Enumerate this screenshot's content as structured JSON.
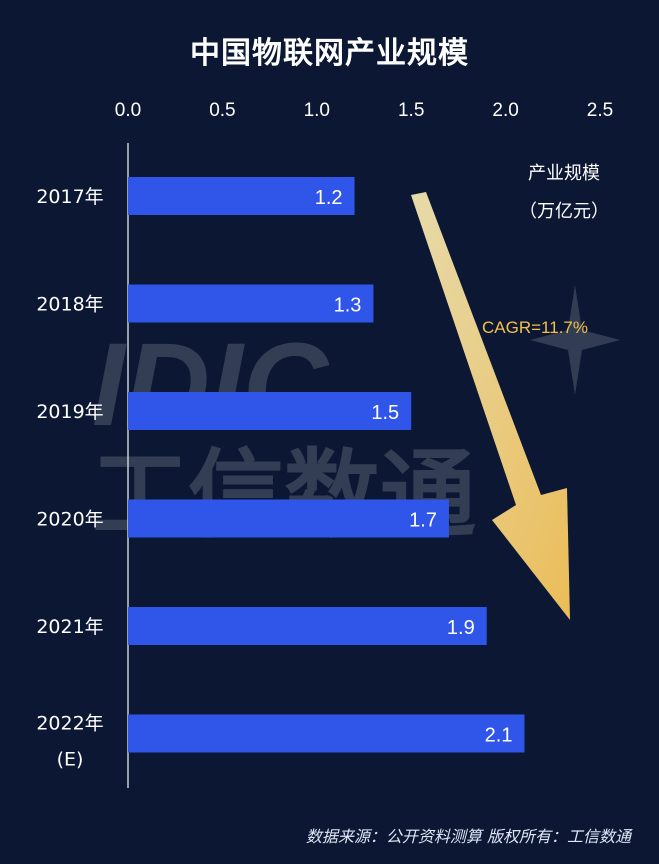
{
  "chart_data": {
    "type": "bar",
    "orientation": "horizontal",
    "title": "中国物联网产业规模",
    "categories": [
      "2017年",
      "2018年",
      "2019年",
      "2020年",
      "2021年",
      "2022年\n(E)"
    ],
    "values": [
      1.2,
      1.3,
      1.5,
      1.7,
      1.9,
      2.1
    ],
    "value_labels": [
      "1.2",
      "1.3",
      "1.5",
      "1.7",
      "1.9",
      "2.1"
    ],
    "x_ticks": [
      "0.0",
      "0.5",
      "1.0",
      "1.5",
      "2.0",
      "2.5"
    ],
    "xlim": [
      0,
      2.5
    ],
    "axis_position": "top",
    "series_label": [
      "产业规模",
      "（万亿元）"
    ],
    "annotation": "CAGR=11.7%",
    "bar_color": "#2f56e8",
    "annotation_color": "#f5c04a",
    "arrow_color": "#fbd77a",
    "grid": false
  },
  "watermark": {
    "logo": "IDIC",
    "text": "工信数通"
  },
  "footer": {
    "source": "数据来源：公开资料测算  版权所有：工信数通"
  }
}
